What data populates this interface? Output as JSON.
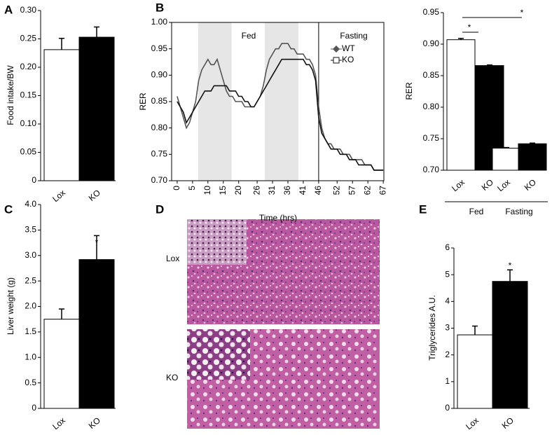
{
  "chart_data": [
    {
      "panel": "A",
      "type": "bar",
      "ylabel": "Food intake/BW",
      "categories": [
        "Lox",
        "KO"
      ],
      "values": [
        0.231,
        0.253
      ],
      "errors": [
        0.02,
        0.018
      ],
      "colors": [
        "#ffffff",
        "#000000"
      ],
      "ylim": [
        0,
        0.3
      ],
      "yticks": [
        0,
        0.05,
        {
          "value": 0.1,
          "label": "0.10"
        },
        0.15,
        {
          "value": 0.2,
          "label": "0.20"
        },
        0.25,
        {
          "value": 0.3,
          "label": "0.30"
        }
      ]
    },
    {
      "panel": "B",
      "type": "line",
      "xlabel": "Time (hrs)",
      "ylabel": "RER",
      "annotations": [
        "Fed",
        "Fasting"
      ],
      "x": [
        0,
        1,
        2,
        3,
        4,
        5,
        6,
        7,
        8,
        9,
        10,
        11,
        12,
        13,
        14,
        15,
        16,
        17,
        18,
        19,
        20,
        21,
        22,
        23,
        24,
        25,
        26,
        27,
        28,
        29,
        30,
        31,
        32,
        33,
        34,
        35,
        36,
        37,
        38,
        39,
        40,
        41,
        42,
        43,
        44,
        45,
        46,
        47,
        48,
        49,
        50,
        51,
        52,
        53,
        54,
        55,
        56,
        57,
        58,
        59,
        60,
        61,
        62,
        63,
        64,
        65,
        66,
        67
      ],
      "series": [
        {
          "name": "WT",
          "color": "#555555",
          "marker": "diamond",
          "values": [
            0.86,
            0.84,
            0.82,
            0.8,
            0.81,
            0.83,
            0.85,
            0.89,
            0.91,
            0.92,
            0.93,
            0.92,
            0.92,
            0.93,
            0.91,
            0.89,
            0.87,
            0.86,
            0.86,
            0.85,
            0.85,
            0.85,
            0.84,
            0.84,
            0.84,
            0.84,
            0.85,
            0.86,
            0.88,
            0.91,
            0.93,
            0.94,
            0.95,
            0.95,
            0.96,
            0.96,
            0.96,
            0.95,
            0.95,
            0.94,
            0.94,
            0.94,
            0.93,
            0.93,
            0.92,
            0.9,
            0.84,
            0.8,
            0.78,
            0.77,
            0.77,
            0.76,
            0.76,
            0.76,
            0.75,
            0.75,
            0.75,
            0.74,
            0.74,
            0.74,
            0.74,
            0.73,
            0.73,
            0.73,
            0.72,
            0.72,
            0.72,
            0.72
          ]
        },
        {
          "name": "KO",
          "color": "#111111",
          "marker": "square",
          "values": [
            0.85,
            0.84,
            0.83,
            0.81,
            0.82,
            0.83,
            0.84,
            0.85,
            0.86,
            0.87,
            0.87,
            0.87,
            0.88,
            0.88,
            0.88,
            0.88,
            0.88,
            0.87,
            0.87,
            0.87,
            0.86,
            0.86,
            0.85,
            0.85,
            0.84,
            0.84,
            0.85,
            0.86,
            0.87,
            0.88,
            0.89,
            0.9,
            0.91,
            0.92,
            0.93,
            0.93,
            0.93,
            0.93,
            0.93,
            0.93,
            0.93,
            0.93,
            0.92,
            0.92,
            0.91,
            0.89,
            0.82,
            0.79,
            0.78,
            0.77,
            0.76,
            0.76,
            0.76,
            0.75,
            0.75,
            0.75,
            0.74,
            0.74,
            0.74,
            0.73,
            0.73,
            0.73,
            0.73,
            0.73,
            0.72,
            0.72,
            0.72,
            0.72
          ]
        }
      ],
      "shaded": [
        [
          6.8,
          17.7
        ],
        [
          28.5,
          39.4
        ]
      ],
      "vline": 46,
      "xlim": [
        -1.8,
        67.2
      ],
      "xticks": [
        0,
        5,
        10,
        15,
        20,
        26,
        31,
        36,
        41,
        46,
        52,
        57,
        62,
        67
      ],
      "ylim": [
        0.7,
        1.0
      ],
      "yticks": [
        {
          "value": 0.7,
          "label": "0.70"
        },
        0.75,
        {
          "value": 0.8,
          "label": "0.80"
        },
        0.85,
        {
          "value": 0.9,
          "label": "0.90"
        },
        0.95,
        {
          "value": 1.0,
          "label": "1.00"
        }
      ]
    },
    {
      "type": "bar",
      "ylabel": "RER",
      "categories": [
        "Lox",
        "KO",
        "Lox",
        "KO"
      ],
      "groups": [
        "Fed",
        "Fasting"
      ],
      "values": [
        0.907,
        0.866,
        0.735,
        0.742
      ],
      "errors": [
        0.002,
        0.001,
        0.001,
        0.001
      ],
      "colors": [
        "#ffffff",
        "#000000",
        "#ffffff",
        "#000000"
      ],
      "annotations": [
        "*",
        "*"
      ],
      "ylim": [
        0.7,
        0.95
      ],
      "yticks": [
        {
          "value": 0.7,
          "label": "0.70"
        },
        0.75,
        {
          "value": 0.8,
          "label": "0.80"
        },
        0.85,
        {
          "value": 0.9,
          "label": "0.90"
        },
        0.95
      ]
    },
    {
      "panel": "C",
      "type": "bar",
      "ylabel": "Liver weight (g)",
      "categories": [
        "Lox",
        "KO"
      ],
      "values": [
        1.75,
        2.92
      ],
      "errors": [
        0.2,
        0.47
      ],
      "colors": [
        "#ffffff",
        "#000000"
      ],
      "annotations": [
        "*"
      ],
      "ylim": [
        0,
        4
      ],
      "yticks": [
        0,
        0.5,
        {
          "value": 1,
          "label": "1.0"
        },
        1.5,
        {
          "value": 2,
          "label": "2.0"
        },
        2.5,
        {
          "value": 3,
          "label": "3.0"
        },
        3.5,
        {
          "value": 4,
          "label": "4.0"
        }
      ]
    },
    {
      "panel": "D",
      "type": "image",
      "labels": [
        "Lox",
        "KO"
      ]
    },
    {
      "panel": "E",
      "type": "bar",
      "ylabel": "Triglycerides A.U.",
      "categories": [
        "Lox",
        "KO"
      ],
      "values": [
        2.75,
        4.75
      ],
      "errors": [
        0.33,
        0.43
      ],
      "colors": [
        "#ffffff",
        "#000000"
      ],
      "annotations": [
        "*"
      ],
      "ylim": [
        0,
        6
      ],
      "yticks": [
        0,
        1,
        2,
        3,
        4,
        5,
        6
      ]
    }
  ]
}
